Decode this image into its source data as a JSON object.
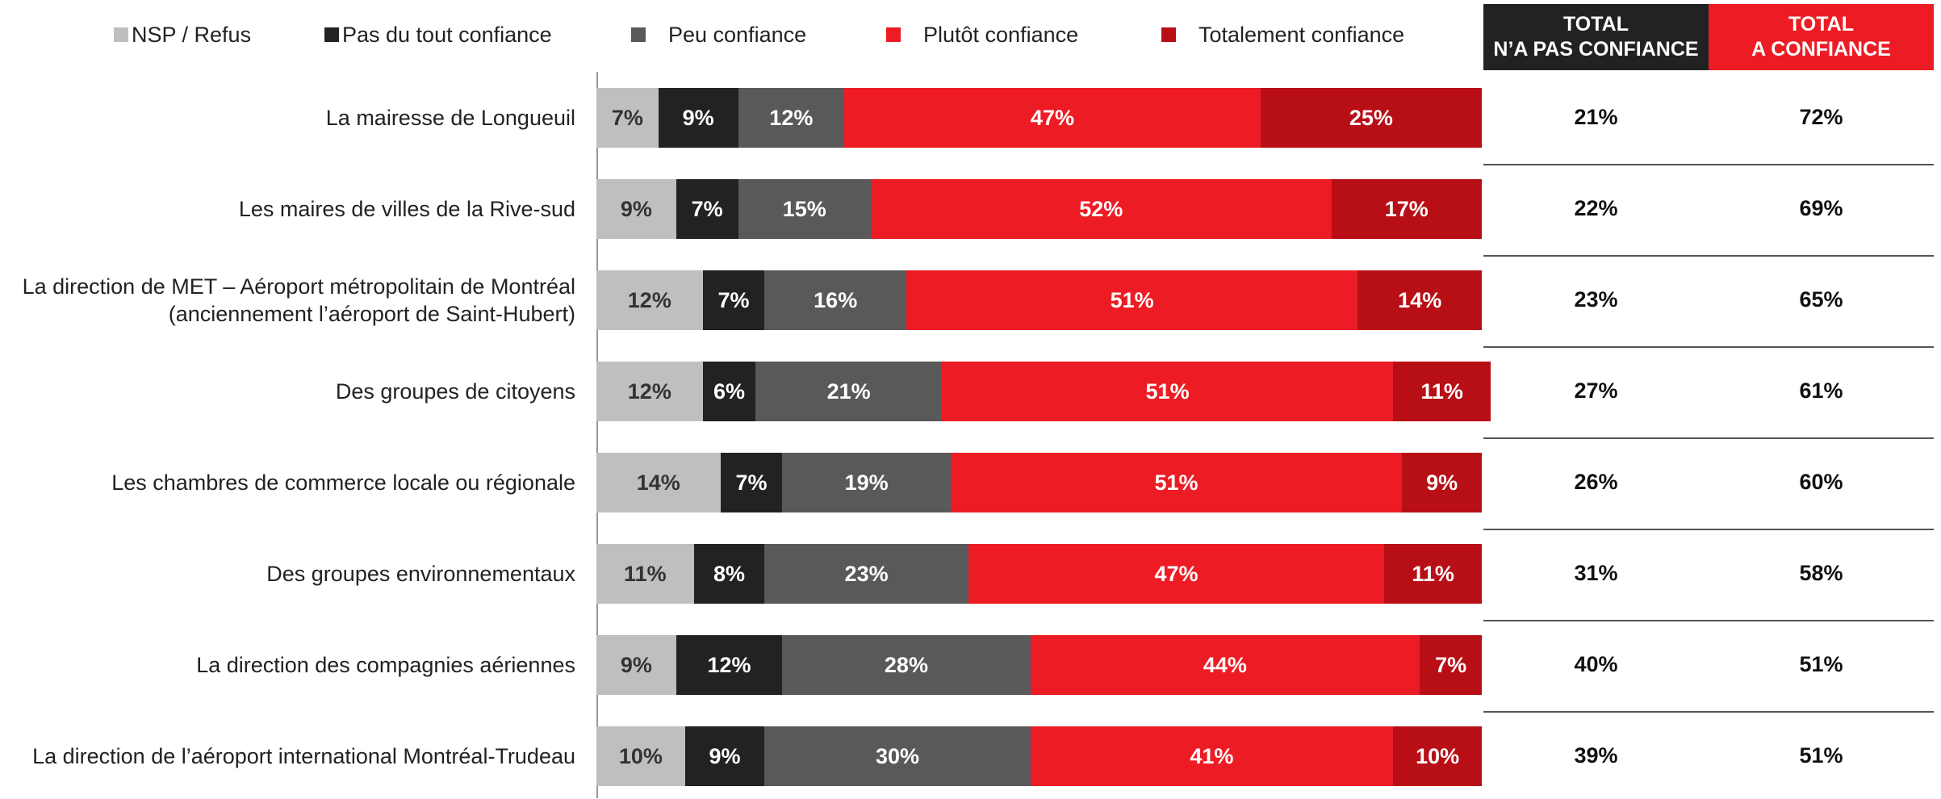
{
  "chart_data": {
    "type": "stacked-bar-horizontal",
    "categories": [
      "La mairesse de Longueuil",
      "Les maires de villes de la Rive-sud",
      "La direction de MET – Aéroport métropolitain de Montréal\n(anciennement l’aéroport de Saint-Hubert)",
      "Des groupes de citoyens",
      "Les chambres de commerce locale ou régionale",
      "Des groupes environnementaux",
      "La direction des compagnies aériennes",
      "La direction de l’aéroport international Montréal-Trudeau"
    ],
    "xlim": [
      0,
      100
    ],
    "series": [
      {
        "name": "NSP / Refus",
        "color": "#bfbfbf",
        "values": [
          7,
          9,
          12,
          12,
          14,
          11,
          9,
          10
        ],
        "value_labels": [
          "7%",
          "9%",
          "12%",
          "12%",
          "14%",
          "11%",
          "9%",
          "10%"
        ]
      },
      {
        "name": "Pas du tout confiance",
        "color": "#222222",
        "values": [
          9,
          7,
          7,
          6,
          7,
          8,
          12,
          9
        ],
        "value_labels": [
          "9%",
          "7%",
          "7%",
          "6%",
          "7%",
          "8%",
          "12%",
          "9%"
        ]
      },
      {
        "name": "Peu confiance",
        "color": "#595959",
        "values": [
          12,
          15,
          16,
          21,
          19,
          23,
          28,
          30
        ],
        "value_labels": [
          "12%",
          "15%",
          "16%",
          "21%",
          "19%",
          "23%",
          "28%",
          "30%"
        ]
      },
      {
        "name": "Plutôt confiance",
        "color": "#ed1c24",
        "values": [
          47,
          52,
          51,
          51,
          51,
          47,
          44,
          41
        ],
        "value_labels": [
          "47%",
          "52%",
          "51%",
          "51%",
          "51%",
          "47%",
          "44%",
          "41%"
        ]
      },
      {
        "name": "Totalement confiance",
        "color": "#b80f16",
        "values": [
          25,
          17,
          14,
          11,
          9,
          11,
          7,
          10
        ],
        "value_labels": [
          "25%",
          "17%",
          "14%",
          "11%",
          "9%",
          "11%",
          "7%",
          "10%"
        ]
      }
    ],
    "columns": [
      {
        "header": "TOTAL\nN’A PAS CONFIANCE",
        "color": "#222222",
        "values": [
          21,
          22,
          23,
          27,
          26,
          31,
          40,
          39
        ],
        "value_labels": [
          "21%",
          "22%",
          "23%",
          "27%",
          "26%",
          "31%",
          "40%",
          "39%"
        ]
      },
      {
        "header": "TOTAL\nA CONFIANCE",
        "color": "#ed1c24",
        "values": [
          72,
          69,
          65,
          61,
          60,
          58,
          51,
          51
        ],
        "value_labels": [
          "72%",
          "69%",
          "65%",
          "61%",
          "60%",
          "58%",
          "51%",
          "51%"
        ]
      }
    ]
  }
}
